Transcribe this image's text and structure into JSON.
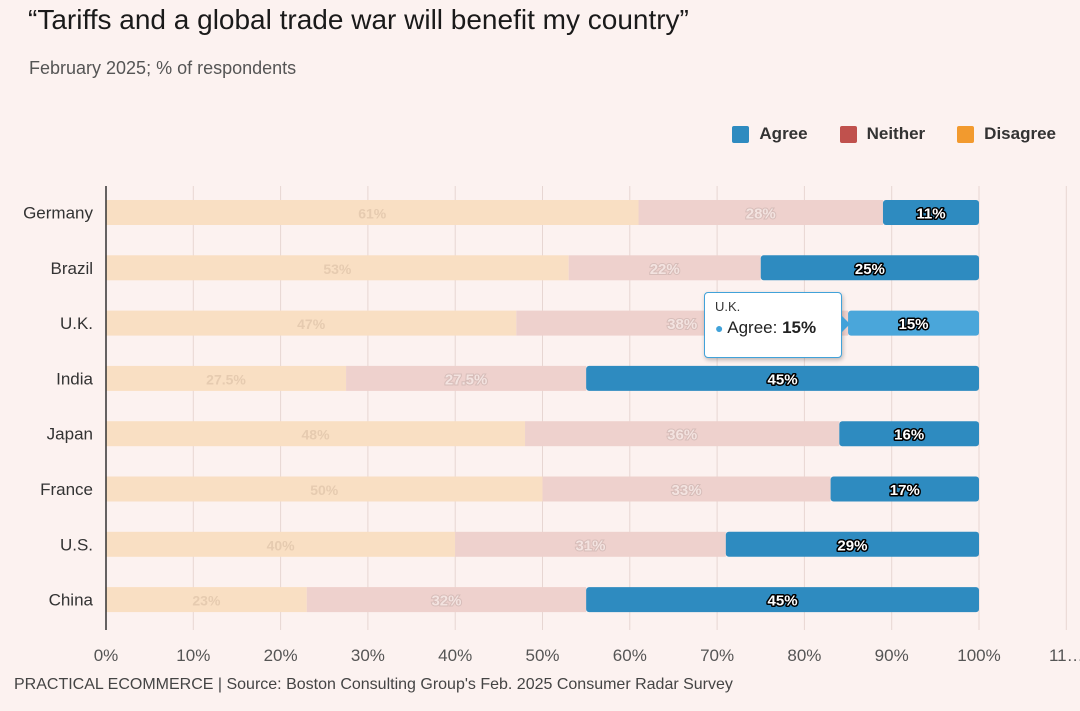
{
  "title": "“Tariffs and a global trade war will benefit my country”",
  "subtitle": "February 2025; % of respondents",
  "footer": "PRACTICAL ECOMMERCE | Source: Boston Consulting Group's Feb. 2025 Consumer Radar Survey",
  "colors": {
    "agree": "#2e8bc0",
    "agree_hover": "#4aa6da",
    "neither": "#c0514d",
    "disagree": "#f29a2e",
    "neither_faded": "#eed1cd",
    "disagree_faded": "#f9dfc3",
    "axis": "#333333",
    "grid": "#e7d6d2"
  },
  "legend": [
    {
      "label": "Agree",
      "color": "#2e8bc0"
    },
    {
      "label": "Neither",
      "color": "#c0514d"
    },
    {
      "label": "Disagree",
      "color": "#f29a2e"
    }
  ],
  "tooltip": {
    "title": "U.K.",
    "series": "Agree",
    "value": "15%"
  },
  "chart_data": {
    "type": "bar",
    "orientation": "horizontal",
    "stacked": true,
    "title": "“Tariffs and a global trade war will benefit my country”",
    "subtitle": "February 2025; % of respondents",
    "categories": [
      "Germany",
      "Brazil",
      "U.K.",
      "India",
      "Japan",
      "France",
      "U.S.",
      "China"
    ],
    "series": [
      {
        "name": "Disagree",
        "values": [
          61,
          53,
          47,
          27.5,
          48,
          50,
          40,
          23
        ],
        "labels": [
          "61%",
          "53%",
          "47%",
          "27.5%",
          "48%",
          "50%",
          "40%",
          "23%"
        ]
      },
      {
        "name": "Neither",
        "values": [
          28,
          22,
          38,
          27.5,
          36,
          33,
          31,
          32
        ],
        "labels": [
          "28%",
          "22%",
          "38%",
          "27.5%",
          "36%",
          "33%",
          "31%",
          "32%"
        ]
      },
      {
        "name": "Agree",
        "values": [
          11,
          25,
          15,
          45,
          16,
          17,
          29,
          45
        ],
        "labels": [
          "11%",
          "25%",
          "15%",
          "45%",
          "16%",
          "17%",
          "29%",
          "45%"
        ]
      }
    ],
    "x_ticks": [
      "0%",
      "10%",
      "20%",
      "30%",
      "40%",
      "50%",
      "60%",
      "70%",
      "80%",
      "90%",
      "100%",
      "11…"
    ],
    "xlim": [
      0,
      110
    ],
    "grid": true,
    "legend_position": "top-right",
    "highlighted_category": "U.K."
  }
}
